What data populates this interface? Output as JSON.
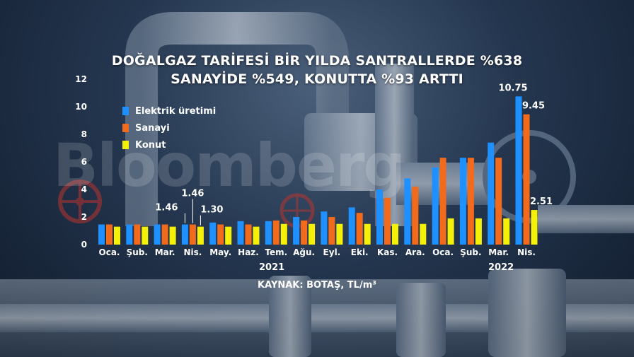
{
  "title_line1": "DOĞALGAZ TARİFESİ BİR YILDA SANTRALLERDE %638",
  "title_line2": "SANAYİDE %549, KONUTTA %93 ARTTI",
  "watermark": "Bloomberg",
  "source": "KAYNAK: BOTAŞ, TL/m³",
  "years": [
    {
      "label": "2021"
    },
    {
      "label": "2022"
    }
  ],
  "colors": {
    "elektrik": "#1e90ff",
    "sanayi": "#f26a1b",
    "konut": "#f5f007",
    "text": "#ffffff"
  },
  "chart_data": {
    "type": "bar",
    "title": "DOĞALGAZ TARİFESİ BİR YILDA SANTRALLERDE %638 SANAYİDE %549, KONUTTA %93 ARTTI",
    "xlabel": "",
    "ylabel": "",
    "ylim": [
      0,
      12
    ],
    "yticks": [
      0,
      2,
      4,
      6,
      8,
      10,
      12
    ],
    "categories": [
      "Oca.",
      "Şub.",
      "Mar.",
      "Nis.",
      "May.",
      "Haz.",
      "Tem.",
      "Ağu.",
      "Eyl.",
      "Eki.",
      "Kas.",
      "Ara.",
      "Oca.",
      "Şub.",
      "Mar.",
      "Nis."
    ],
    "series": [
      {
        "name": "Elektrik üretimi",
        "values": [
          1.46,
          1.46,
          1.46,
          1.46,
          1.6,
          1.7,
          1.7,
          2.0,
          2.4,
          2.7,
          4.0,
          4.8,
          5.6,
          6.3,
          7.4,
          10.75
        ]
      },
      {
        "name": "Sanayi",
        "values": [
          1.46,
          1.46,
          1.46,
          1.46,
          1.46,
          1.46,
          1.75,
          1.75,
          2.0,
          2.3,
          3.4,
          4.2,
          6.3,
          6.3,
          6.3,
          9.45
        ]
      },
      {
        "name": "Konut",
        "values": [
          1.3,
          1.3,
          1.3,
          1.3,
          1.3,
          1.3,
          1.5,
          1.5,
          1.5,
          1.5,
          1.5,
          1.5,
          1.9,
          1.9,
          1.9,
          2.51
        ]
      }
    ],
    "data_labels": [
      {
        "text": "1.46",
        "category_index": 3,
        "series_index": 0
      },
      {
        "text": "1.46",
        "category_index": 3,
        "series_index": 1
      },
      {
        "text": "1.30",
        "category_index": 3,
        "series_index": 2
      },
      {
        "text": "10.75",
        "category_index": 15,
        "series_index": 0
      },
      {
        "text": "9.45",
        "category_index": 15,
        "series_index": 1
      },
      {
        "text": "2.51",
        "category_index": 15,
        "series_index": 2
      }
    ],
    "grid": false,
    "legend_position": "top-left"
  }
}
